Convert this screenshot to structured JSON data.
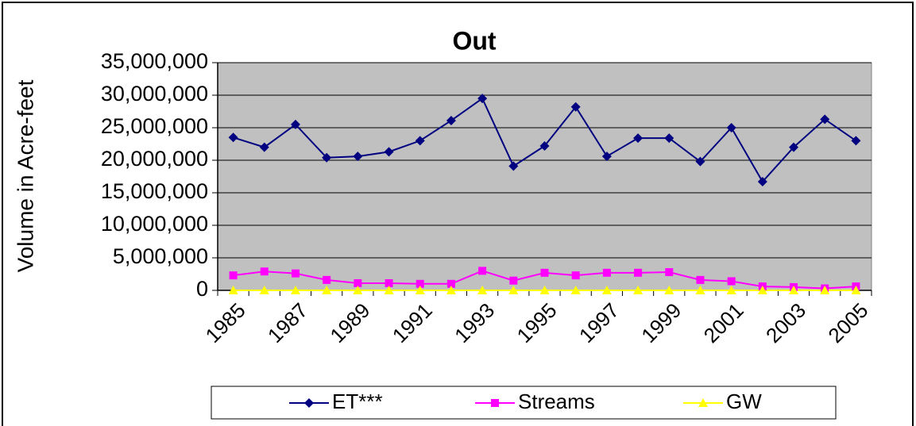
{
  "chart_data": {
    "type": "line",
    "title": "Out",
    "y_label": "Volume in Acre-feet",
    "categories": [
      "1985",
      null,
      "1987",
      null,
      "1989",
      null,
      "1991",
      null,
      "1993",
      null,
      "1995",
      null,
      "1997",
      null,
      "1999",
      null,
      "2001",
      null,
      "2003",
      null,
      "2005"
    ],
    "series": [
      {
        "name": "ET***",
        "color": "#000080",
        "marker": "diamond",
        "values": [
          23500000,
          22000000,
          25500000,
          20400000,
          20600000,
          21300000,
          23000000,
          26100000,
          29500000,
          19100000,
          22200000,
          28200000,
          20600000,
          23400000,
          23400000,
          19800000,
          25000000,
          16700000,
          22000000,
          26300000,
          23000000
        ]
      },
      {
        "name": "Streams",
        "color": "#ff00ff",
        "marker": "square",
        "values": [
          2300000,
          2900000,
          2600000,
          1600000,
          1100000,
          1100000,
          1000000,
          1000000,
          3000000,
          1500000,
          2700000,
          2300000,
          2700000,
          2700000,
          2800000,
          1600000,
          1400000,
          600000,
          500000,
          300000,
          600000
        ]
      },
      {
        "name": "GW",
        "color": "#ffff00",
        "marker": "triangle",
        "values": [
          0,
          0,
          0,
          0,
          0,
          0,
          0,
          0,
          0,
          0,
          0,
          0,
          0,
          0,
          0,
          0,
          0,
          0,
          0,
          0,
          0
        ]
      }
    ],
    "ylim": [
      0,
      35000000
    ],
    "yticks": [
      0,
      {
        "value": 5000000,
        "label": "5,000,000"
      },
      {
        "value": 10000000,
        "label": "10,000,000"
      },
      {
        "value": 15000000,
        "label": "15,000,000"
      },
      {
        "value": 20000000,
        "label": "20,000,000"
      },
      {
        "value": 25000000,
        "label": "25,000,000"
      },
      {
        "value": 30000000,
        "label": "30,000,000"
      },
      {
        "value": 35000000,
        "label": "35,000,000"
      }
    ],
    "grid": true,
    "plot_background": "#c0c0c0",
    "legend": "bottom"
  }
}
